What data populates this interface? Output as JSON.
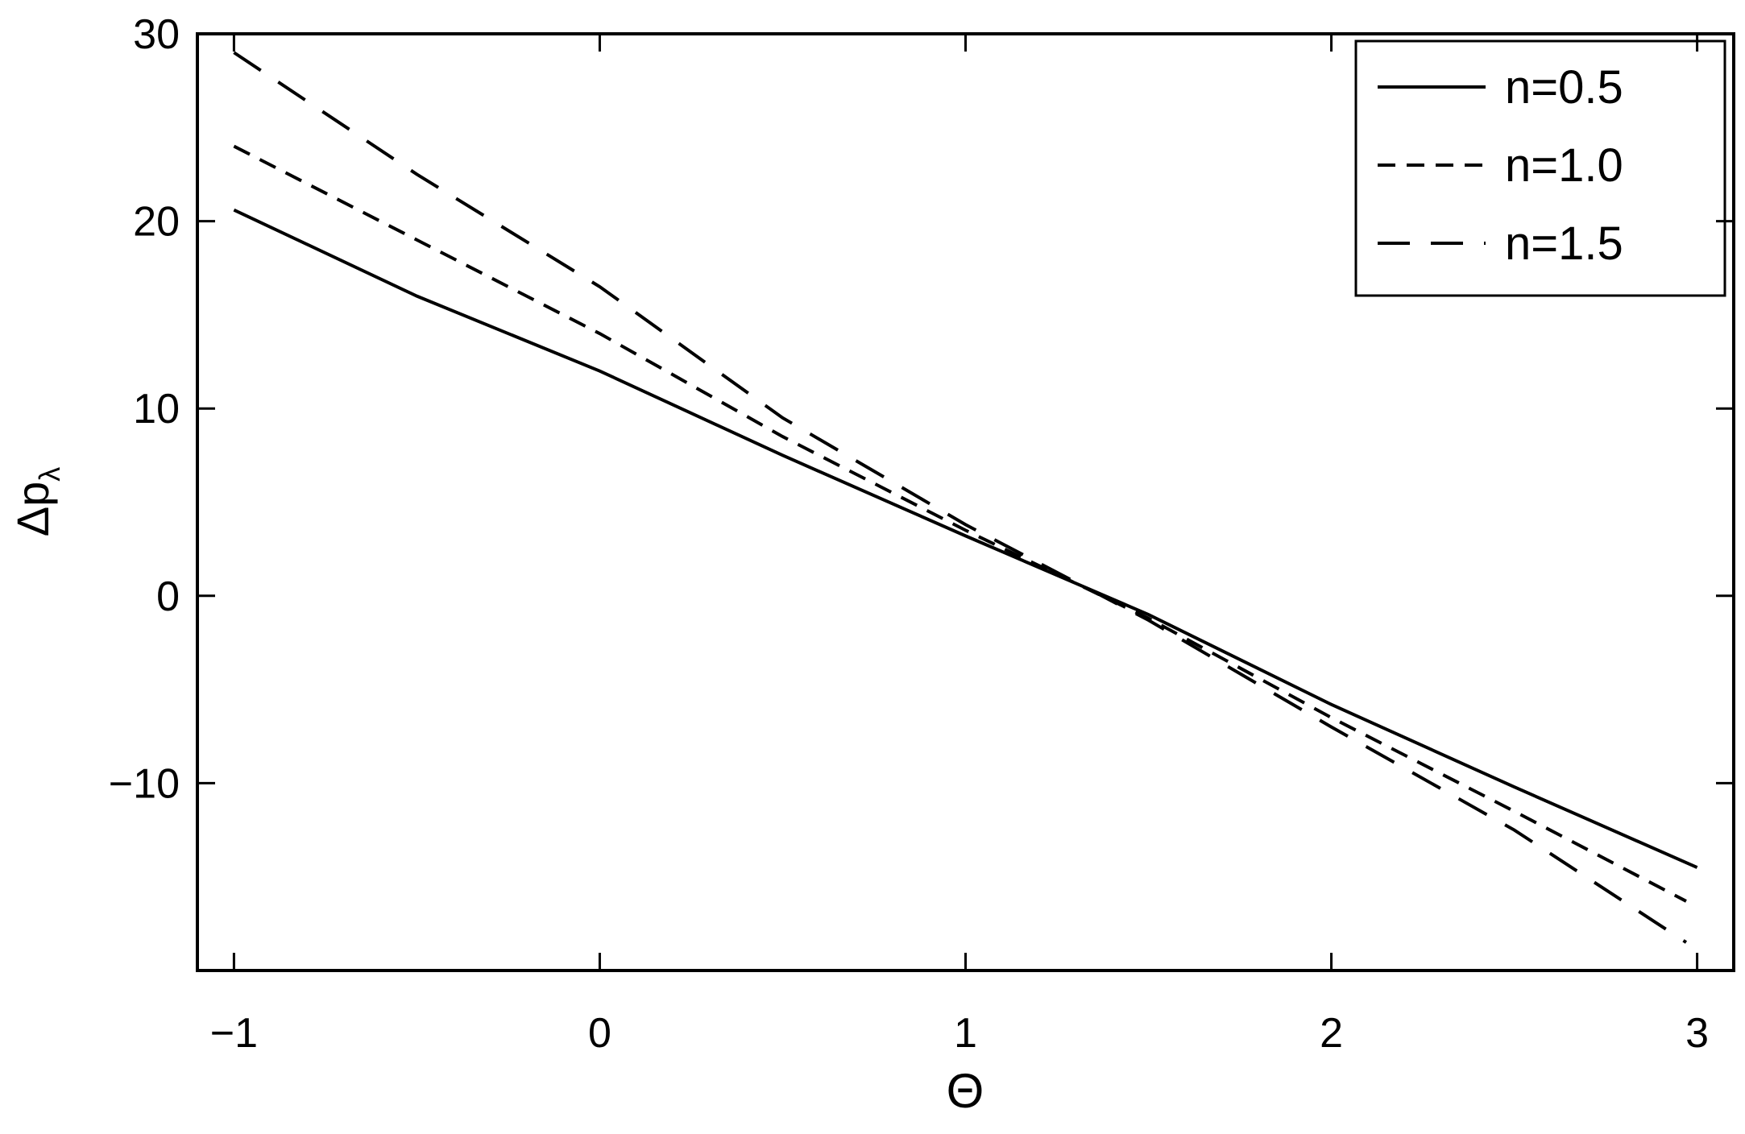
{
  "chart_data": {
    "type": "line",
    "x_label": "Θ",
    "y_label": "Δp",
    "y_label_sub": "λ",
    "xlim": [
      -1.1,
      3.1
    ],
    "ylim": [
      -20,
      30
    ],
    "xticks": [
      {
        "value": -1,
        "label": "−1"
      },
      0,
      1,
      2,
      3
    ],
    "yticks": [
      {
        "value": -10,
        "label": "−10"
      },
      0,
      10,
      20,
      30
    ],
    "legend": "top-right",
    "series": [
      {
        "name": "n=0.5",
        "color": "#000000",
        "dash": "solid",
        "x": [
          -1,
          -0.5,
          0,
          0.5,
          1,
          1.5,
          2,
          2.5,
          3
        ],
        "values": [
          20.6,
          16,
          12,
          7.5,
          3.2,
          -1.0,
          -5.8,
          -10.2,
          -14.5
        ]
      },
      {
        "name": "n=1.0",
        "color": "#000000",
        "dash": "short",
        "x": [
          -1,
          -0.5,
          0,
          0.5,
          1,
          1.5,
          2,
          2.5,
          2.97
        ],
        "values": [
          24,
          19,
          14,
          8.5,
          3.5,
          -1.2,
          -6.5,
          -11.5,
          -16.3
        ]
      },
      {
        "name": "n=1.5",
        "color": "#000000",
        "dash": "long",
        "x": [
          -1,
          -0.5,
          0,
          0.5,
          1,
          1.5,
          2,
          2.5,
          2.97
        ],
        "values": [
          29,
          22.5,
          16.5,
          9.5,
          3.8,
          -1.3,
          -7,
          -12.5,
          -18.5
        ]
      }
    ]
  }
}
